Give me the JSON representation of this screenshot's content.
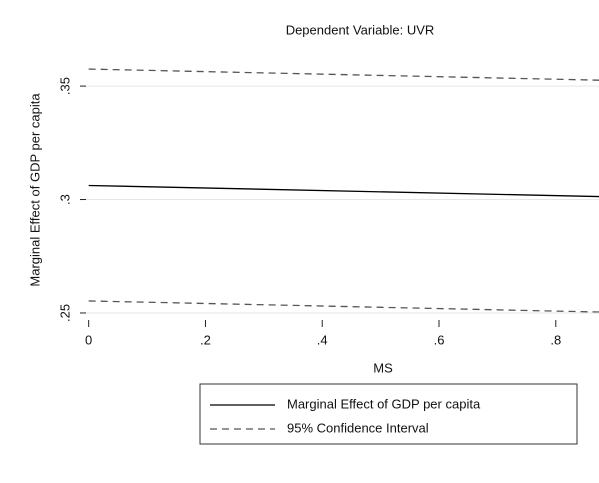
{
  "chart_data": {
    "type": "line",
    "title": "Dependent Variable: UVR",
    "x_label": "MS",
    "y_label": "Marginal Effect of GDP per capita",
    "x": [
      0,
      1
    ],
    "series": [
      {
        "name": "Marginal Effect of GDP per capita",
        "color": "#000000",
        "dash": "solid",
        "values": [
          0.3062,
          0.3006
        ]
      },
      {
        "name": "95% Confidence Interval",
        "color": "#555555",
        "dash": "dashed",
        "values": [
          0.3575,
          0.3519
        ],
        "lower": [
          0.2553,
          0.2497
        ]
      }
    ],
    "xlim": [
      -0.008,
      0.874
    ],
    "ylim": [
      0.2469,
      0.3615
    ],
    "xticks": [
      0,
      {
        "value": 0.2,
        "label": ".2"
      },
      {
        "value": 0.4,
        "label": ".4"
      },
      {
        "value": 0.6,
        "label": ".6"
      },
      {
        "value": 0.8,
        "label": ".8"
      }
    ],
    "yticks": [
      {
        "value": 0.25,
        "label": ".25"
      },
      {
        "value": 0.3,
        "label": ".3"
      },
      {
        "value": 0.35,
        "label": ".35"
      }
    ],
    "grid": true
  }
}
